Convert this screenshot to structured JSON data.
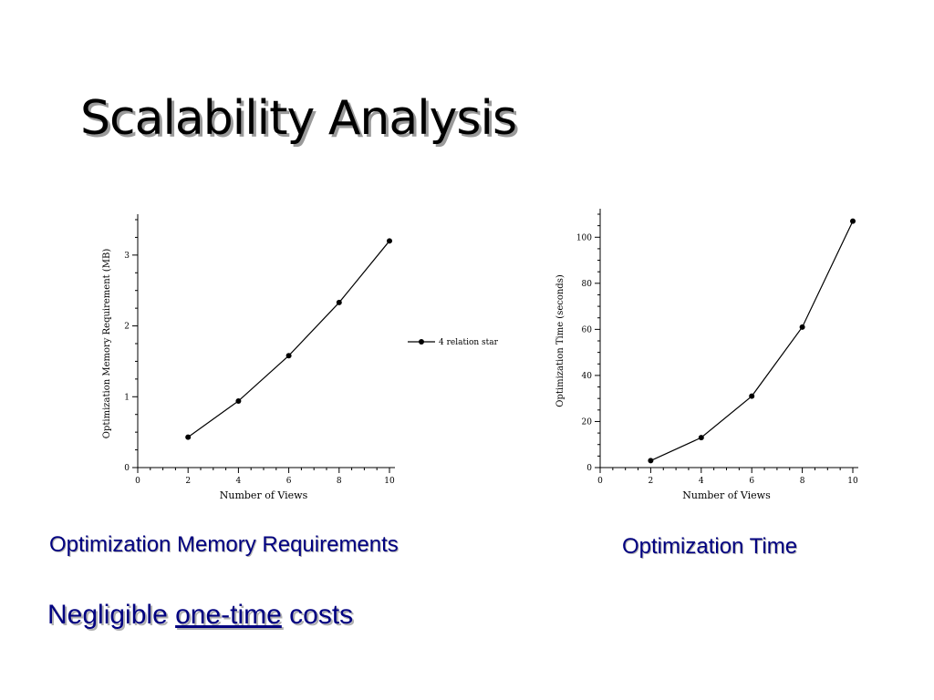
{
  "slide": {
    "title": "Scalability Analysis",
    "caption_left": "Optimization Memory Requirements",
    "caption_right": "Optimization Time",
    "note": {
      "pre": "Negligible ",
      "emph": "one-time",
      "post": " costs"
    },
    "colors": {
      "caption": "#000080",
      "line": "#000000"
    }
  },
  "chart_data": [
    {
      "type": "line",
      "xlabel": "Number of Views",
      "ylabel": "Optimization Memory Requirement (MB)",
      "xlim": [
        0,
        10
      ],
      "ylim": [
        0,
        3.5
      ],
      "xticks": [
        0,
        2,
        4,
        6,
        8,
        10
      ],
      "yticks": [
        0,
        1,
        2,
        3
      ],
      "grid": false,
      "legend": "right",
      "series": [
        {
          "name": "4 relation star",
          "x": [
            2,
            4,
            6,
            8,
            10
          ],
          "y": [
            0.43,
            0.94,
            1.58,
            2.33,
            3.2
          ]
        }
      ]
    },
    {
      "type": "line",
      "xlabel": "Number of Views",
      "ylabel": "Optimization Time (seconds)",
      "xlim": [
        0,
        10
      ],
      "ylim": [
        0,
        110
      ],
      "xticks": [
        0,
        2,
        4,
        6,
        8,
        10
      ],
      "yticks": [
        0,
        20,
        40,
        60,
        80,
        100
      ],
      "grid": false,
      "series": [
        {
          "x": [
            2,
            4,
            6,
            8,
            10
          ],
          "y": [
            3,
            13,
            31,
            61,
            107
          ]
        }
      ]
    }
  ]
}
